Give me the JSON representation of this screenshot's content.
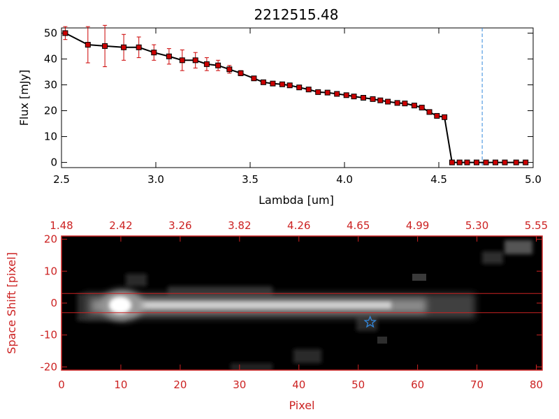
{
  "colors": {
    "line": "#000000",
    "marker": "#cc0000",
    "errorbar": "#cc0000",
    "dashed": "#3388dd",
    "red_axis": "#cc2222",
    "star": "#3388dd"
  },
  "chart_data": [
    {
      "type": "line",
      "title": "2212515.48",
      "xlabel": "Lambda [um]",
      "ylabel": "Flux [mJy]",
      "xlim": [
        2.5,
        5.0
      ],
      "ylim": [
        -2,
        52
      ],
      "xticks": [
        "2.5",
        "3.0",
        "3.5",
        "4.0",
        "4.5",
        "5.0"
      ],
      "yticks": [
        "0",
        "10",
        "20",
        "30",
        "40",
        "50"
      ],
      "x": [
        2.52,
        2.64,
        2.73,
        2.83,
        2.91,
        2.99,
        3.07,
        3.14,
        3.21,
        3.27,
        3.33,
        3.39,
        3.45,
        3.52,
        3.57,
        3.62,
        3.67,
        3.71,
        3.76,
        3.81,
        3.86,
        3.91,
        3.96,
        4.01,
        4.05,
        4.1,
        4.15,
        4.19,
        4.23,
        4.28,
        4.32,
        4.37,
        4.41,
        4.45,
        4.49,
        4.53,
        4.57,
        4.61,
        4.65,
        4.7,
        4.75,
        4.8,
        4.85,
        4.91,
        4.96
      ],
      "values": [
        50,
        45.5,
        45,
        44.5,
        44.5,
        42.5,
        41,
        39.5,
        39.5,
        38,
        37.5,
        36,
        34.5,
        32.5,
        31,
        30.5,
        30.2,
        29.8,
        29,
        28.2,
        27.2,
        27,
        26.5,
        26,
        25.5,
        25,
        24.5,
        24,
        23.5,
        23,
        22.8,
        22,
        21.2,
        19.5,
        18,
        17.5,
        0,
        0,
        0,
        0,
        0,
        0,
        0,
        0,
        0
      ],
      "errors": [
        2.5,
        7,
        8,
        5,
        4,
        3,
        3,
        4,
        3,
        2.5,
        2,
        1.5,
        1,
        0.8,
        0.8,
        0.8,
        0.7,
        0.7,
        0.6,
        0.6,
        0.6,
        0.6,
        0.6,
        0.6,
        0.6,
        0.6,
        0.6,
        0.6,
        0.6,
        0.6,
        0.6,
        0.6,
        0.6,
        0.6,
        0.6,
        0.6,
        0.6,
        0.6,
        0.6,
        0.6,
        0.6,
        0.6,
        0.6,
        0.6,
        0.6
      ],
      "vline_x": 4.73
    },
    {
      "type": "heatmap",
      "xlabel": "Pixel",
      "ylabel": "Space Shift [pixel]",
      "xlim": [
        0,
        81
      ],
      "ylim": [
        -21,
        21
      ],
      "xticks": [
        "0",
        "10",
        "20",
        "30",
        "40",
        "50",
        "60",
        "70",
        "80"
      ],
      "yticks": [
        "-20",
        "-10",
        "0",
        "10",
        "20"
      ],
      "top_xticks": [
        "1.48",
        "2.42",
        "3.26",
        "3.82",
        "4.26",
        "4.65",
        "4.99",
        "5.30",
        "5.55"
      ],
      "hlines": [
        3,
        -3
      ],
      "star_marker": {
        "x": 52,
        "y": -6
      }
    }
  ]
}
